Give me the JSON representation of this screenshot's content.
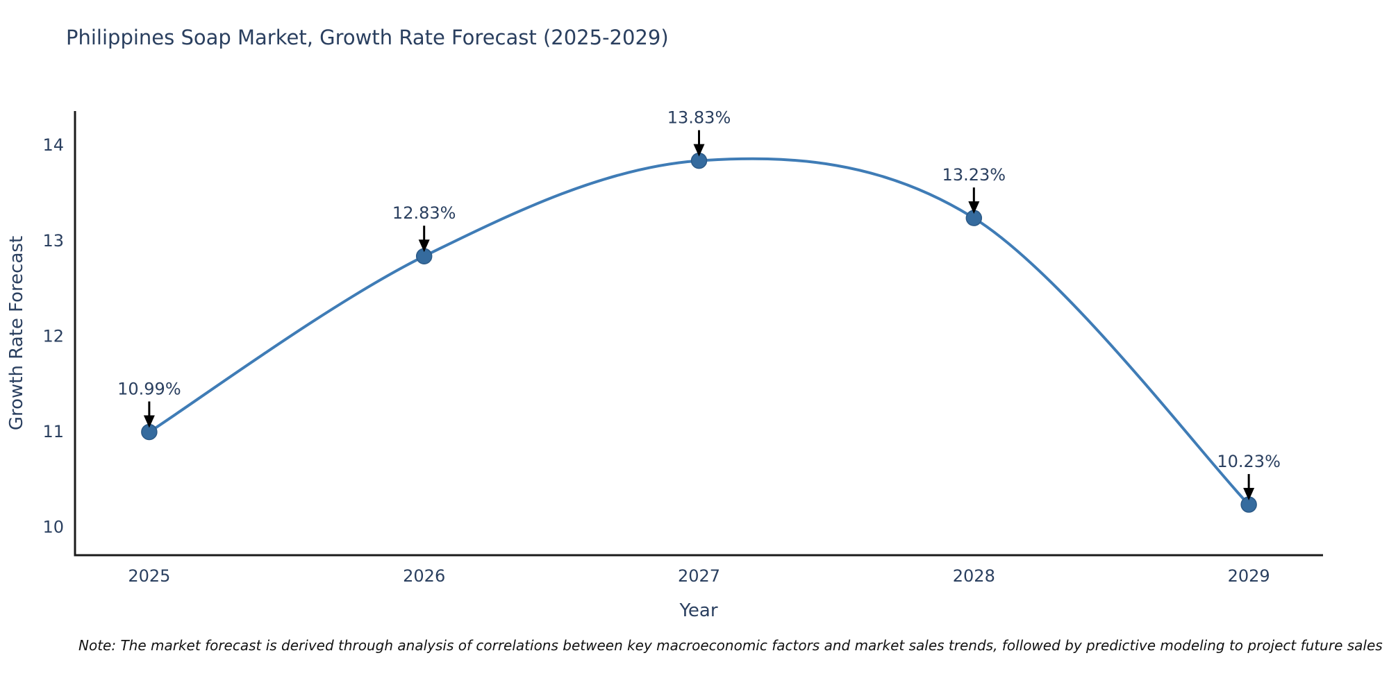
{
  "chart_data": {
    "type": "line",
    "title": "Philippines Soap Market, Growth Rate Forecast (2025-2029)",
    "xlabel": "Year",
    "ylabel": "Growth Rate Forecast",
    "categories": [
      2025,
      2026,
      2027,
      2028,
      2029
    ],
    "series": [
      {
        "name": "Growth Rate Forecast",
        "values": [
          10.99,
          12.83,
          13.83,
          13.23,
          10.23
        ]
      }
    ],
    "point_labels": [
      "10.99%",
      "12.83%",
      "13.83%",
      "13.23%",
      "10.23%"
    ],
    "y_ticks": [
      10,
      11,
      12,
      13,
      14
    ],
    "x_range": [
      2024.73,
      2029.27
    ],
    "y_range": [
      9.7,
      14.35
    ],
    "line_shape": "spline",
    "grid": false,
    "legend_position": "none",
    "annotations_style": "value label with downward black arrow to each marker",
    "colors": {
      "line": "#3f7cb6",
      "marker": "#356b9e",
      "marker_edge": "#2c5a87",
      "axis_line": "#1a1a1a",
      "tick_text": "#2a3f5f",
      "title_text": "#2a3f5f",
      "annotation_text": "#2a3f5f",
      "annotation_arrow": "#000000"
    },
    "note": "Note: The market forecast is derived through analysis of correlations between key macroeconomic factors and market sales trends, followed by predictive modeling to project future sales"
  }
}
